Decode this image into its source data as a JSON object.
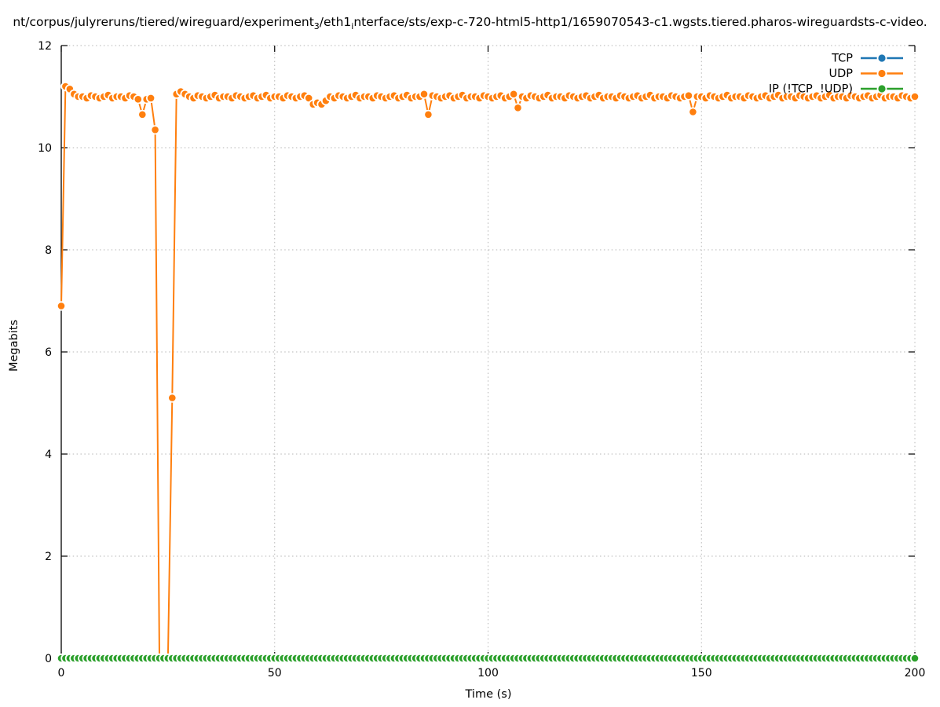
{
  "title": {
    "part1": "nt/corpus/julyreruns/tiered/wireguard/experiment",
    "sub1": "3",
    "part2": "/eth1",
    "sub2": "i",
    "part3": "nterface/sts/exp-c-720-html5-http1/1659070543-c1.wgsts.tiered.pharos-wireguardsts-c-video."
  },
  "chart_data": {
    "type": "line",
    "title": "nt/corpus/julyreruns/tiered/wireguard/experiment_3/eth1_interface/sts/exp-c-720-html5-http1/1659070543-c1.wgsts.tiered.pharos-wireguardsts-c-video.",
    "xlabel": "Time (s)",
    "ylabel": "Megabits",
    "xlim": [
      0,
      200
    ],
    "ylim": [
      0,
      12
    ],
    "xticks": [
      0,
      50,
      100,
      150,
      200
    ],
    "yticks": [
      0,
      2,
      4,
      6,
      8,
      10,
      12
    ],
    "grid": true,
    "grid_style": "dotted",
    "legend_position": "top-right",
    "colors": {
      "grid": "#b5b5b5",
      "axis": "#000000",
      "marker_edge": "#ffffff"
    },
    "series": [
      {
        "name": "TCP",
        "color": "#1f77b4",
        "marker": "circle",
        "x_start": 0,
        "x_step": 1,
        "constant": 0,
        "count": 201
      },
      {
        "name": "UDP",
        "color": "#ff7f0e",
        "marker": "circle",
        "x_start": 0,
        "x_step": 1,
        "values": [
          6.9,
          11.2,
          11.15,
          11.05,
          11.0,
          11.0,
          10.97,
          11.02,
          11.0,
          10.97,
          11.0,
          11.03,
          10.97,
          11.0,
          11.0,
          10.97,
          11.02,
          11.0,
          10.95,
          10.65,
          10.95,
          10.97,
          10.35,
          0,
          0,
          0,
          5.1,
          11.05,
          11.1,
          11.05,
          11.0,
          10.97,
          11.02,
          11.0,
          10.97,
          11.0,
          11.03,
          10.97,
          11.0,
          11.0,
          10.97,
          11.02,
          11.0,
          10.97,
          11.0,
          11.02,
          10.97,
          11.0,
          11.03,
          10.97,
          11.0,
          11.0,
          10.97,
          11.02,
          11.0,
          10.97,
          11.0,
          11.02,
          10.97,
          10.85,
          10.88,
          10.85,
          10.92,
          11.0,
          10.97,
          11.02,
          11.0,
          10.97,
          11.0,
          11.03,
          10.97,
          11.0,
          11.0,
          10.97,
          11.02,
          11.0,
          10.97,
          11.0,
          11.02,
          10.97,
          11.0,
          11.03,
          10.97,
          11.0,
          11.0,
          11.05,
          10.65,
          11.02,
          11.0,
          10.97,
          11.0,
          11.02,
          10.97,
          11.0,
          11.03,
          10.97,
          11.0,
          11.0,
          10.97,
          11.02,
          11.0,
          10.97,
          11.0,
          11.02,
          10.97,
          11.0,
          11.05,
          10.78,
          11.0,
          10.97,
          11.02,
          11.0,
          10.97,
          11.0,
          11.03,
          10.97,
          11.0,
          11.0,
          10.97,
          11.02,
          11.0,
          10.97,
          11.0,
          11.02,
          10.97,
          11.0,
          11.03,
          10.97,
          11.0,
          11.0,
          10.97,
          11.02,
          11.0,
          10.97,
          11.0,
          11.02,
          10.97,
          11.0,
          11.03,
          10.97,
          11.0,
          11.0,
          10.97,
          11.02,
          11.0,
          10.97,
          11.0,
          11.02,
          10.7,
          11.0,
          11.0,
          10.97,
          11.02,
          11.0,
          10.97,
          11.0,
          11.03,
          10.97,
          11.0,
          11.0,
          10.97,
          11.02,
          11.0,
          10.97,
          11.0,
          11.02,
          10.97,
          11.0,
          11.03,
          10.97,
          11.0,
          11.0,
          10.97,
          11.02,
          11.0,
          10.97,
          11.0,
          11.02,
          10.97,
          11.0,
          11.03,
          10.97,
          11.0,
          11.0,
          10.97,
          11.02,
          11.0,
          10.97,
          11.0,
          11.02,
          10.97,
          11.0,
          11.03,
          10.97,
          11.0,
          11.0,
          10.97,
          11.02,
          11.0,
          10.97,
          11.0
        ]
      },
      {
        "name": "IP (!TCP  !UDP)",
        "color": "#2ca02c",
        "marker": "circle",
        "x_start": 0,
        "x_step": 1,
        "constant": 0,
        "count": 201
      }
    ]
  }
}
